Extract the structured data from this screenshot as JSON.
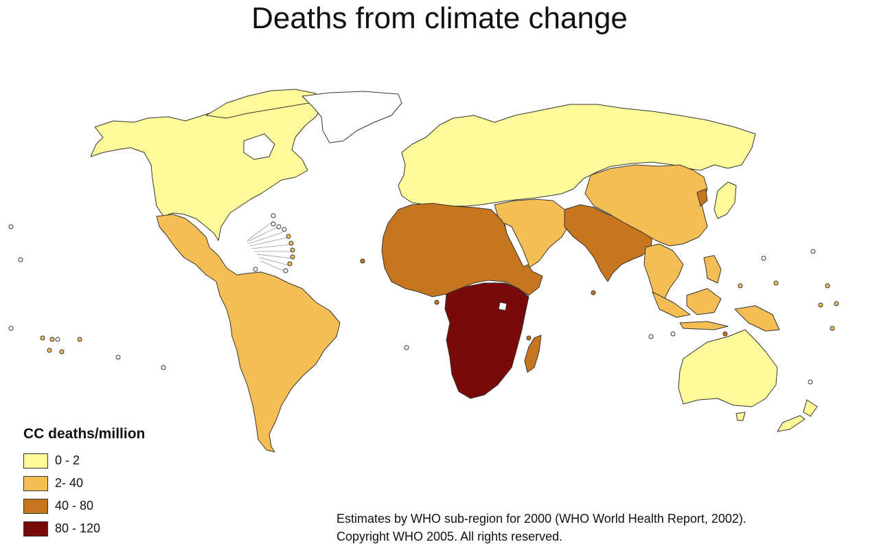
{
  "title": "Deaths from climate change",
  "legend": {
    "title": "CC deaths/million",
    "items": [
      {
        "label": "0 - 2",
        "color": "#FFFB9A"
      },
      {
        "label": "2- 40",
        "color": "#F4BE55"
      },
      {
        "label": "40 - 80",
        "color": "#C5761E"
      },
      {
        "label": "80 - 120",
        "color": "#7A0A07"
      }
    ]
  },
  "source": {
    "line1": "Estimates by WHO sub-region for 2000 (WHO World Health Report, 2002).",
    "line2": "Copyright WHO 2005.  All rights reserved."
  },
  "map": {
    "no_data_color": "#FFFFFF",
    "regions": [
      {
        "name": "North America",
        "category": "0 - 2"
      },
      {
        "name": "Greenland",
        "category": "no data"
      },
      {
        "name": "Europe and Russia",
        "category": "0 - 2"
      },
      {
        "name": "Australia and New Zealand",
        "category": "0 - 2"
      },
      {
        "name": "Japan",
        "category": "0 - 2"
      },
      {
        "name": "Latin America",
        "category": "2- 40"
      },
      {
        "name": "China and East Asia",
        "category": "2- 40"
      },
      {
        "name": "Southeast Asia",
        "category": "2- 40"
      },
      {
        "name": "Middle East",
        "category": "2- 40"
      },
      {
        "name": "North and West Africa",
        "category": "40 - 80"
      },
      {
        "name": "South Asia",
        "category": "40 - 80"
      },
      {
        "name": "Madagascar",
        "category": "40 - 80"
      },
      {
        "name": "Central, East and Southern Africa",
        "category": "80 - 120"
      },
      {
        "name": "North Korea",
        "category": "40 - 80"
      }
    ]
  }
}
